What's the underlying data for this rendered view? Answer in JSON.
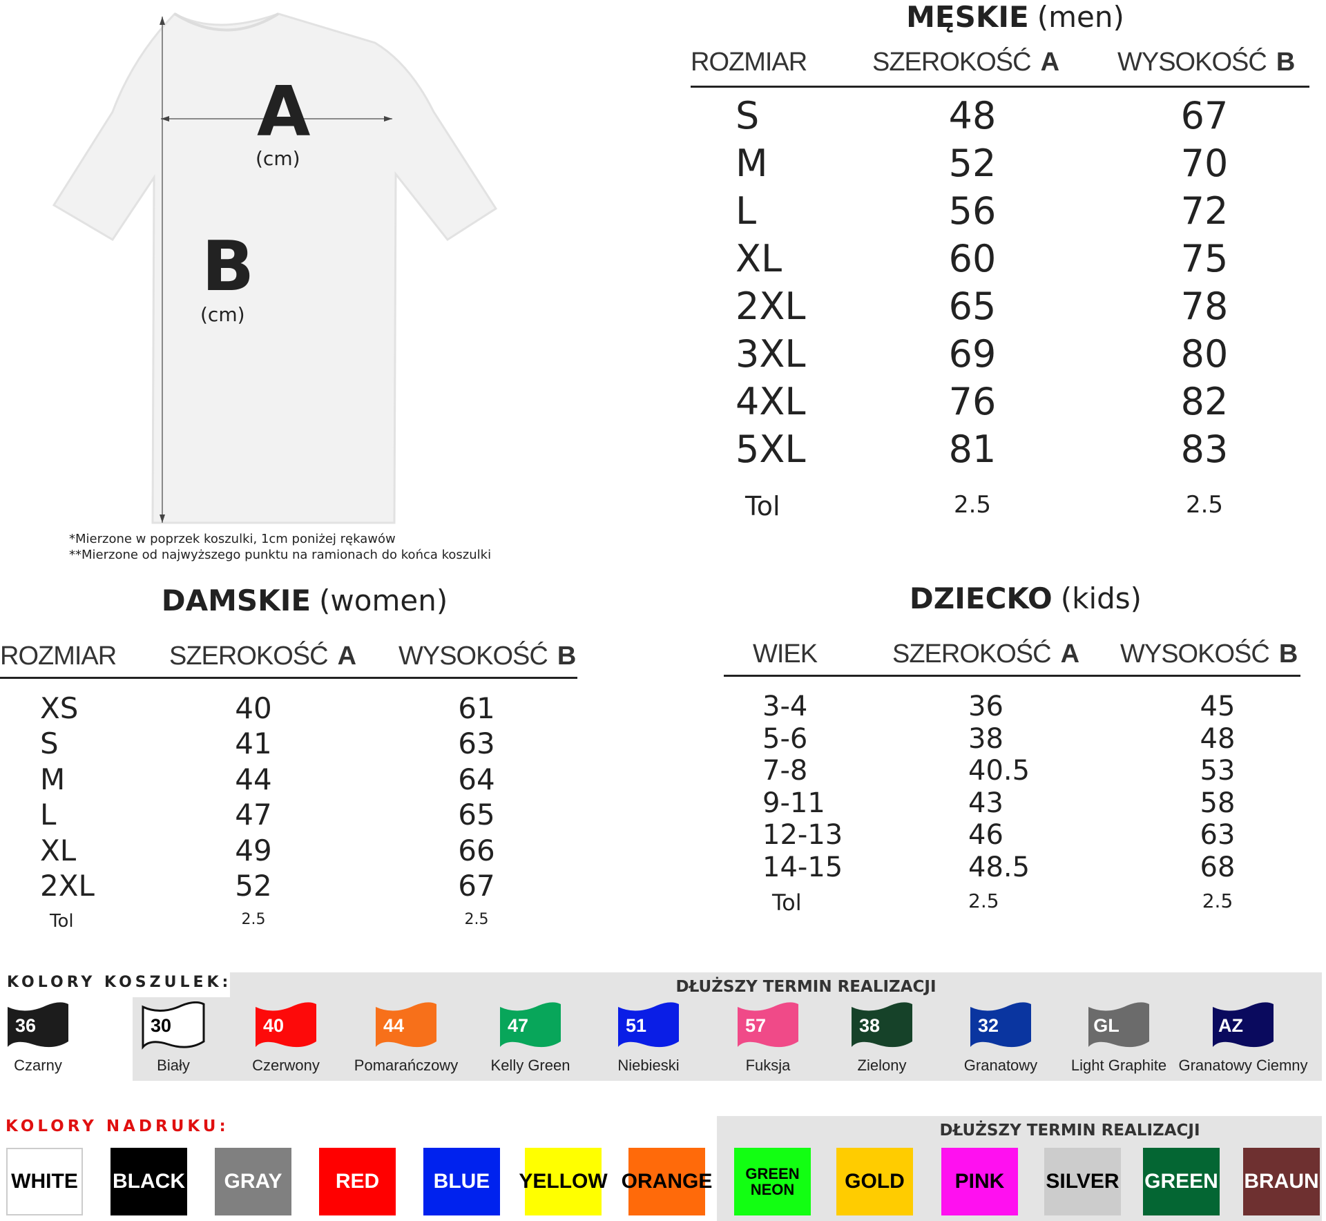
{
  "diagram": {
    "label_a": "A",
    "label_b": "B",
    "unit": "(cm)"
  },
  "notes": [
    "*Mierzone w poprzek koszulki, 1cm poniżej rękawów",
    "**Mierzone od najwyższego punktu na ramionach do końca koszulki"
  ],
  "men": {
    "title": "MĘSKIE",
    "subtitle": "(men)",
    "headers": [
      "ROZMIAR",
      "SZEROKOŚĆ",
      "A",
      "WYSOKOŚĆ",
      "B"
    ],
    "rows": [
      [
        "S",
        "48",
        "67"
      ],
      [
        "M",
        "52",
        "70"
      ],
      [
        "L",
        "56",
        "72"
      ],
      [
        "XL",
        "60",
        "75"
      ],
      [
        "2XL",
        "65",
        "78"
      ],
      [
        "3XL",
        "69",
        "80"
      ],
      [
        "4XL",
        "76",
        "82"
      ],
      [
        "5XL",
        "81",
        "83"
      ]
    ],
    "tol": [
      "Tol",
      "2.5",
      "2.5"
    ]
  },
  "women": {
    "title": "DAMSKIE",
    "subtitle": "(women)",
    "headers": [
      "ROZMIAR",
      "SZEROKOŚĆ",
      "A",
      "WYSOKOŚĆ",
      "B"
    ],
    "rows": [
      [
        "XS",
        "40",
        "61"
      ],
      [
        "S",
        "41",
        "63"
      ],
      [
        "M",
        "44",
        "64"
      ],
      [
        "L",
        "47",
        "65"
      ],
      [
        "XL",
        "49",
        "66"
      ],
      [
        "2XL",
        "52",
        "67"
      ]
    ],
    "tol": [
      "Tol",
      "2.5",
      "2.5"
    ]
  },
  "kids": {
    "title": "DZIECKO",
    "subtitle": "(kids)",
    "headers": [
      "WIEK",
      "SZEROKOŚĆ",
      "A",
      "WYSOKOŚĆ",
      "B"
    ],
    "rows": [
      [
        "3-4",
        "36",
        "45"
      ],
      [
        "5-6",
        "38",
        "48"
      ],
      [
        "7-8",
        "40.5",
        "53"
      ],
      [
        "9-11",
        "43",
        "58"
      ],
      [
        "12-13",
        "46",
        "63"
      ],
      [
        "14-15",
        "48.5",
        "68"
      ]
    ],
    "tol": [
      "Tol",
      "2.5",
      "2.5"
    ]
  },
  "shirt_colors": {
    "label": "KOLORY KOSZULEK:",
    "long_note": "DŁUŻSZY TERMIN REALIZACJI",
    "items": [
      {
        "code": "36",
        "name": "Czarny",
        "color": "#1c1c1c"
      },
      {
        "code": "30",
        "name": "Biały",
        "color": "#ffffff"
      },
      {
        "code": "40",
        "name": "Czerwony",
        "color": "#fd0a0a"
      },
      {
        "code": "44",
        "name": "Pomarańczowy",
        "color": "#f7701a"
      },
      {
        "code": "47",
        "name": "Kelly Green",
        "color": "#08a65a"
      },
      {
        "code": "51",
        "name": "Niebieski",
        "color": "#0a1ee6"
      },
      {
        "code": "57",
        "name": "Fuksja",
        "color": "#f04a88"
      },
      {
        "code": "38",
        "name": "Zielony",
        "color": "#164229"
      },
      {
        "code": "32",
        "name": "Granatowy",
        "color": "#0a35a0"
      },
      {
        "code": "GL",
        "name": "Light Graphite",
        "color": "#6b6b6b"
      },
      {
        "code": "AZ",
        "name": "Granatowy Ciemny",
        "color": "#0a0a5e"
      }
    ]
  },
  "print_colors": {
    "label": "KOLORY NADRUKU:",
    "long_note": "DŁUŻSZY TERMIN REALIZACJI",
    "items": [
      {
        "name": "WHITE",
        "color": "#ffffff",
        "text": "#000000"
      },
      {
        "name": "BLACK",
        "color": "#000000",
        "text": "#ffffff"
      },
      {
        "name": "GRAY",
        "color": "#808080",
        "text": "#ffffff"
      },
      {
        "name": "RED",
        "color": "#ff0000",
        "text": "#ffffff"
      },
      {
        "name": "BLUE",
        "color": "#0022ee",
        "text": "#ffffff"
      },
      {
        "name": "YELLOW",
        "color": "#ffff00",
        "text": "#000000"
      },
      {
        "name": "ORANGE",
        "color": "#ff6a0a",
        "text": "#000000"
      },
      {
        "name": "GREEN NEON",
        "color": "#12ff12",
        "text": "#000000"
      },
      {
        "name": "GOLD",
        "color": "#ffcc00",
        "text": "#000000"
      },
      {
        "name": "PINK",
        "color": "#ff10f0",
        "text": "#000000"
      },
      {
        "name": "SILVER",
        "color": "#cccccc",
        "text": "#000000"
      },
      {
        "name": "GREEN",
        "color": "#046633",
        "text": "#ffffff"
      },
      {
        "name": "BRAUN",
        "color": "#6e3030",
        "text": "#ffffff"
      }
    ]
  }
}
